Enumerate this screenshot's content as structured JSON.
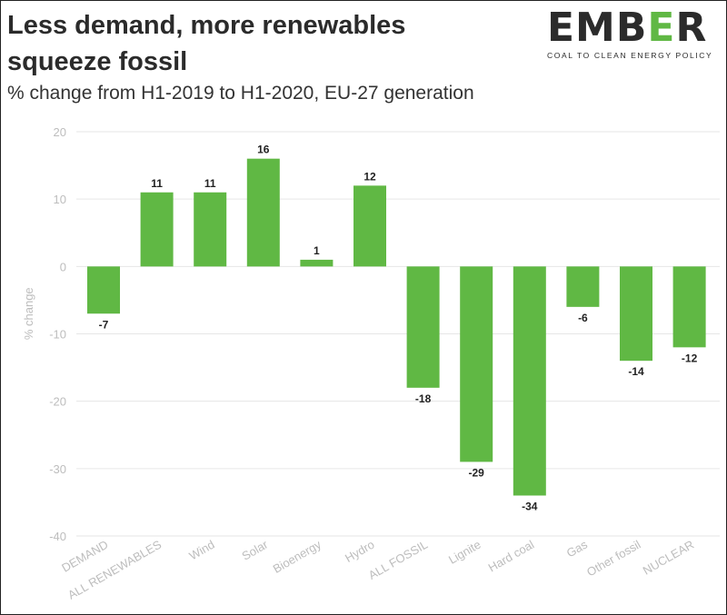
{
  "header": {
    "title": "Less demand, more renewables squeeze fossil",
    "subtitle": "% change from H1-2019 to H1-2020, EU-27 generation"
  },
  "logo": {
    "word_pre": "EMB",
    "word_mark": "E",
    "word_post": "R",
    "tagline": "COAL TO CLEAN ENERGY POLICY"
  },
  "colors": {
    "bar": "#60b844",
    "grid": "#e6e6e6",
    "axis_text": "#bdbdbd",
    "value_text": "#222222"
  },
  "chart_data": {
    "type": "bar",
    "title": "Less demand, more renewables squeeze fossil",
    "subtitle": "% change from H1-2019 to H1-2020, EU-27 generation",
    "xlabel": "",
    "ylabel": "% change",
    "ylim": [
      -40,
      20
    ],
    "yticks": [
      20,
      10,
      0,
      -10,
      -20,
      -30,
      -40
    ],
    "grid": true,
    "categories": [
      "DEMAND",
      "ALL RENEWABLES",
      "Wind",
      "Solar",
      "Bioenergy",
      "Hydro",
      "ALL FOSSIL",
      "Lignite",
      "Hard coal",
      "Gas",
      "Other fossil",
      "NUCLEAR"
    ],
    "values": [
      -7,
      11,
      11,
      16,
      1,
      12,
      -18,
      -29,
      -34,
      -6,
      -14,
      -12
    ]
  }
}
